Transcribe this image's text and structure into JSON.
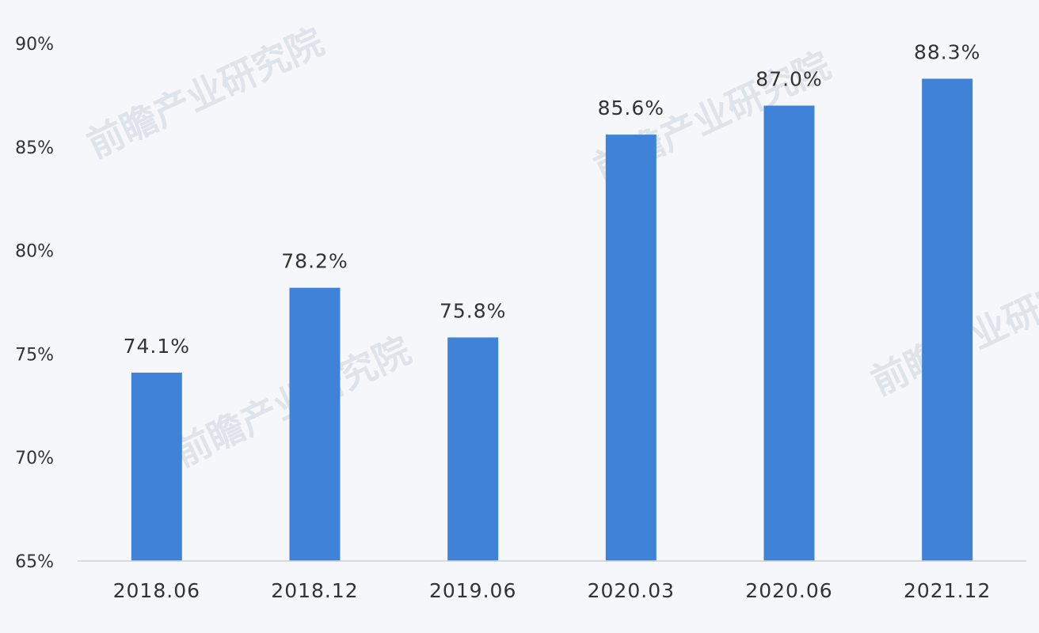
{
  "chart_data": {
    "type": "bar",
    "categories": [
      "2018.06",
      "2018.12",
      "2019.06",
      "2020.03",
      "2020.06",
      "2021.12"
    ],
    "values": [
      74.1,
      78.2,
      75.8,
      85.6,
      87.0,
      88.3
    ],
    "data_labels": [
      "74.1%",
      "78.2%",
      "75.8%",
      "85.6%",
      "87.0%",
      "88.3%"
    ],
    "y_ticks": [
      65,
      70,
      75,
      80,
      85,
      90
    ],
    "y_tick_labels": [
      "65%",
      "70%",
      "75%",
      "80%",
      "85%",
      "90%"
    ],
    "ylim": [
      65,
      90
    ],
    "grid": false,
    "bar_color": "#3f83d8",
    "watermark": "前瞻产业研究院"
  }
}
